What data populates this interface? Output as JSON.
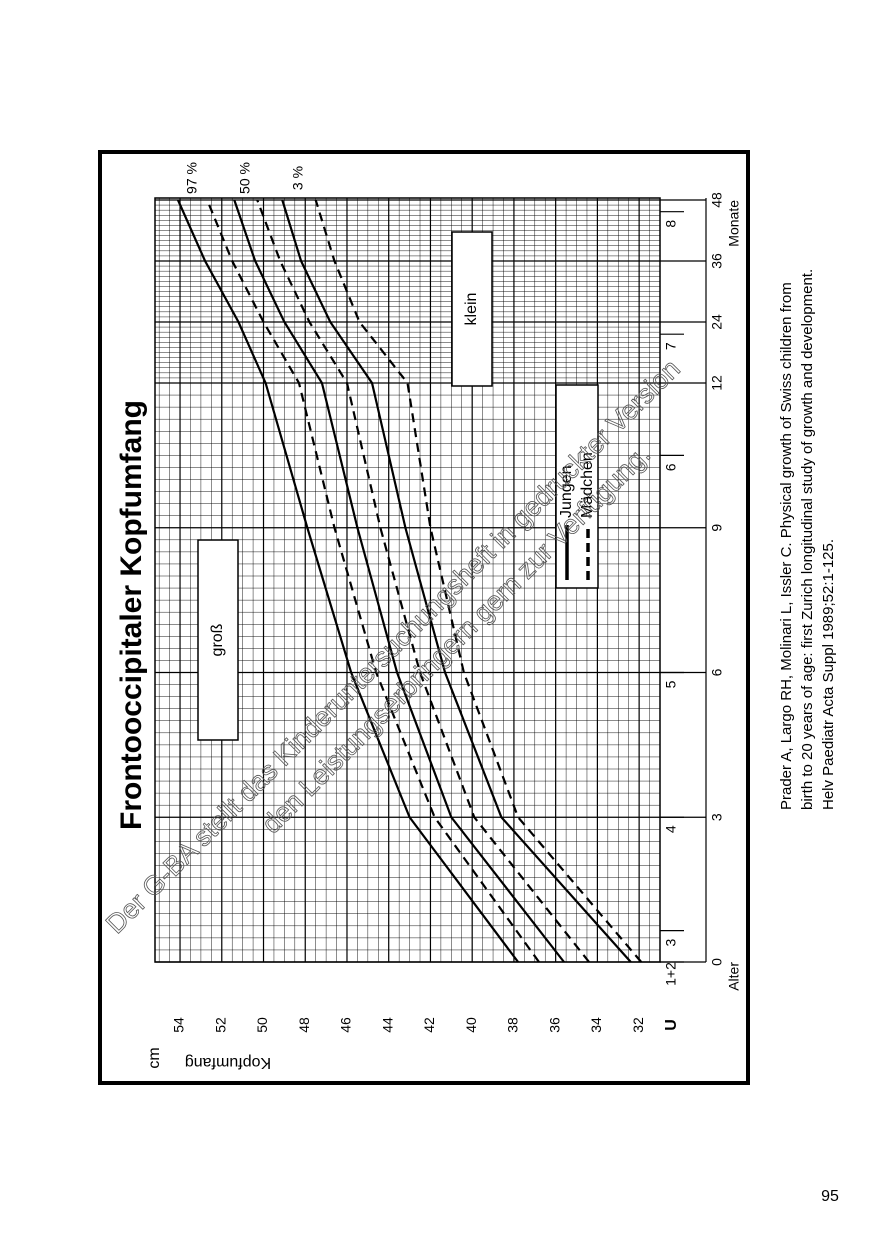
{
  "chart_data": {
    "type": "line",
    "title": "Frontooccipitaler Kopfumfang",
    "ylabel": "Kopfumfang",
    "yunit": "cm",
    "xlabel": "Alter",
    "xunit": "Monate",
    "x": [
      0,
      3,
      6,
      9,
      12,
      24,
      36,
      48
    ],
    "xlim": [
      0,
      48
    ],
    "xticks": [
      0,
      3,
      6,
      9,
      12,
      24,
      36,
      48
    ],
    "ylim": [
      31,
      55.2
    ],
    "yticks": [
      32,
      34,
      36,
      38,
      40,
      42,
      44,
      46,
      48,
      50,
      52,
      54
    ],
    "grid": true,
    "u_exams": {
      "label": "U",
      "ticks": [
        {
          "value": 0,
          "label": "1+2"
        },
        {
          "value": 0.65,
          "label": "3"
        },
        {
          "value": 3,
          "label": "4"
        },
        {
          "value": 6,
          "label": "5"
        },
        {
          "value": 10.5,
          "label": "6"
        },
        {
          "value": 21.6,
          "label": "7"
        },
        {
          "value": 45.7,
          "label": "8"
        }
      ]
    },
    "regions": [
      "groß",
      "klein"
    ],
    "series": [
      {
        "name": "Jungen",
        "color": "#000000",
        "dashed": false,
        "curves": [
          {
            "name": "97 %",
            "values": [
              37.8,
              43.0,
              45.8,
              47.9,
              49.9,
              51.2,
              52.8,
              54.1
            ]
          },
          {
            "name": "50 %",
            "values": [
              35.6,
              41.0,
              43.6,
              45.5,
              47.2,
              49.0,
              50.4,
              51.4
            ]
          },
          {
            "name": "3 %",
            "values": [
              32.4,
              38.6,
              41.3,
              43.2,
              44.8,
              46.8,
              48.2,
              49.1
            ]
          }
        ]
      },
      {
        "name": "Mädchen",
        "color": "#000000",
        "dashed": true,
        "curves": [
          {
            "values": [
              36.8,
              41.8,
              44.6,
              46.6,
              48.3,
              50.0,
              51.5,
              52.7
            ]
          },
          {
            "values": [
              34.4,
              39.9,
              42.5,
              44.4,
              46.0,
              47.8,
              49.2,
              50.3
            ]
          },
          {
            "values": [
              31.9,
              37.8,
              40.4,
              42.0,
              43.1,
              45.4,
              46.6,
              47.5
            ]
          }
        ]
      }
    ]
  },
  "watermark": [
    "Der G-BA stellt das Kinderuntersuchungsheft in gedruckter Version",
    "den Leistungserbringern gern zur Verfügung."
  ],
  "citation": [
    "Prader A, Largo RH, Molinari L, Issler C. Physical growth of Swiss children from",
    "birth to 20 years of age: first Zurich longitudinal study of growth and development.",
    "Helv Paediatr Acta Suppl 1989;52:1-125."
  ],
  "page_number": "95"
}
